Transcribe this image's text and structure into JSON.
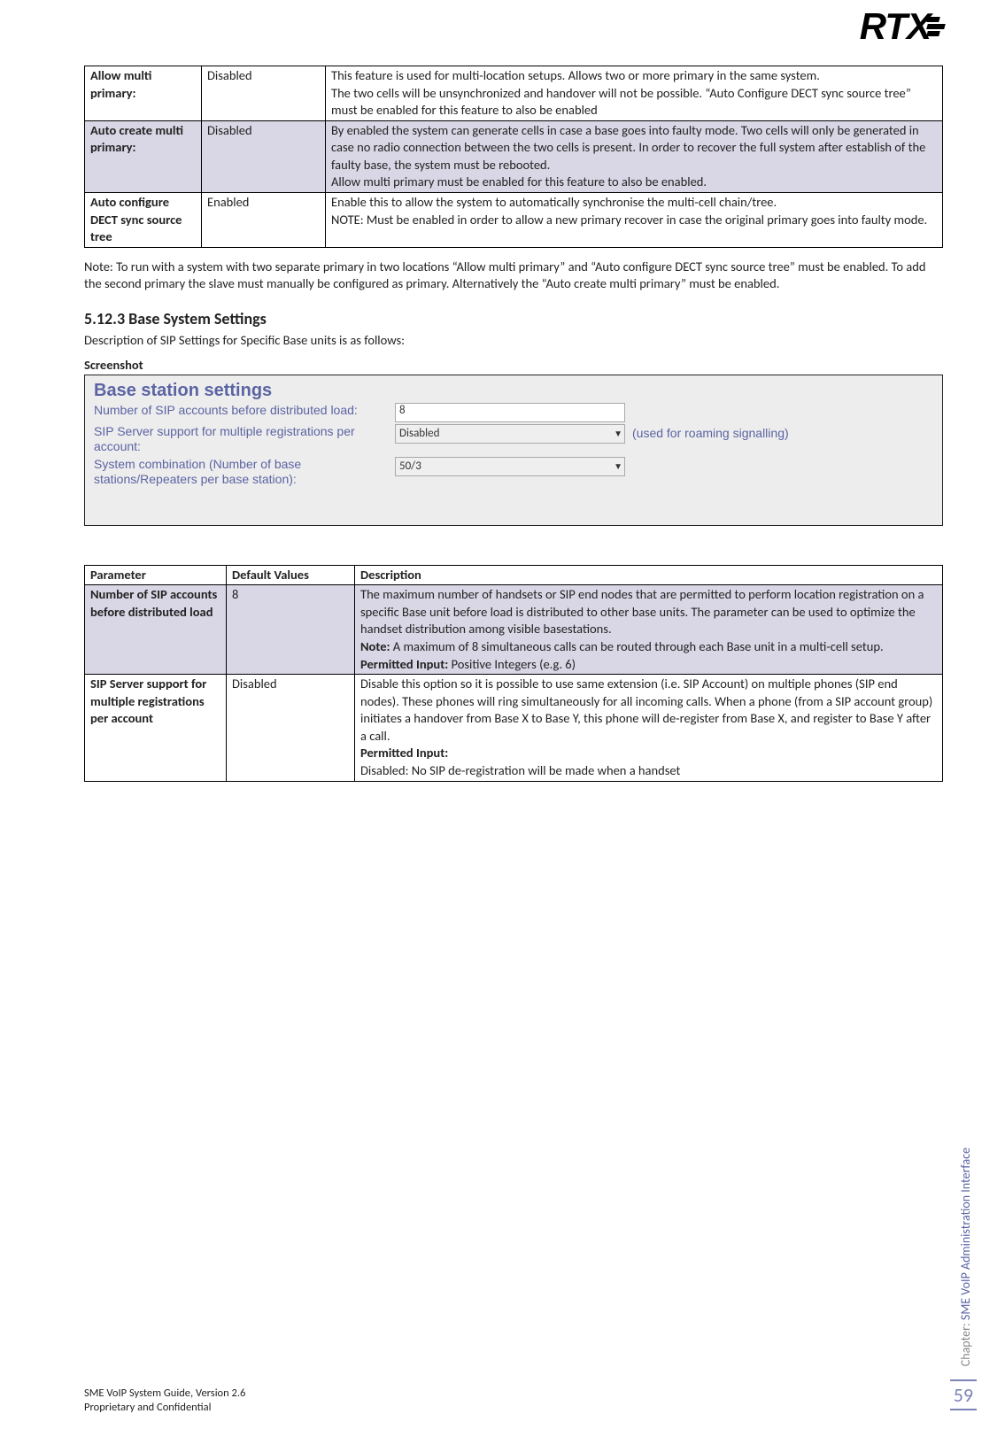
{
  "logo_text": "RTX",
  "table1": {
    "rows": [
      {
        "param": "Allow multi primary:",
        "default": "Disabled",
        "desc": "This feature is used for multi-location setups. Allows two or more primary in the same system.\nThe two cells will be unsynchronized and handover will not be possible. “Auto Configure DECT sync source tree” must be enabled for this feature to also be enabled",
        "shaded": false
      },
      {
        "param": "Auto create multi primary:",
        "default": "Disabled",
        "desc": "By enabled the system can generate cells in case a base goes into faulty mode. Two cells will only be generated in case no radio connection between the two cells is present. In order to recover the full system after establish of the faulty base, the system must be rebooted.\nAllow multi primary must be enabled for this feature to also be enabled.",
        "shaded": true
      },
      {
        "param": "Auto configure DECT sync source tree",
        "default": "Enabled",
        "desc": "Enable this to allow the system to automatically synchronise the multi-cell chain/tree.\nNOTE: Must be enabled in order to allow a new primary recover in case the original primary goes into faulty mode.",
        "shaded": false
      }
    ]
  },
  "note_para": "Note: To run with a system with two separate primary in two locations “Allow multi primary” and “Auto configure DECT sync source tree” must be enabled. To add the second primary the slave must manually be configured as primary. Alternatively the “Auto create multi primary” must be enabled.",
  "section_heading": "5.12.3 Base System Settings",
  "desc_para": "Description of SIP Settings for Specific Base units is as follows:",
  "screenshot_label": "Screenshot",
  "screenshot": {
    "title": "Base station settings",
    "rows": [
      {
        "label": "Number of SIP accounts before distributed load:",
        "type": "text",
        "value": "8",
        "hint": ""
      },
      {
        "label": "SIP Server support for multiple registrations per account:",
        "type": "select",
        "value": "Disabled",
        "hint": "(used for roaming signalling)"
      },
      {
        "label": "System combination (Number of base stations/Repeaters per base station):",
        "type": "select",
        "value": "50/3",
        "hint": ""
      }
    ]
  },
  "table2": {
    "headers": [
      "Parameter",
      "Default Values",
      "Description"
    ],
    "rows": [
      {
        "param": "Number of SIP accounts before distributed load",
        "default": "8",
        "desc_parts": [
          {
            "text": "The maximum number of handsets or SIP end nodes that are permitted to perform location registration on a specific Base unit before load is distributed to other base units. The parameter can be used to optimize the handset distribution among visible basestations."
          },
          {
            "boldprefix": "Note:",
            "text": " A maximum of 8 simultaneous calls can be routed through each Base unit in a multi-cell setup."
          },
          {
            "boldprefix": "Permitted Input:",
            "text": " Positive Integers (e.g. 6)"
          }
        ],
        "shaded": true
      },
      {
        "param": "SIP Server support for multiple registrations per account",
        "default": "Disabled",
        "desc_parts": [
          {
            "text": "Disable this option so it is possible to use same extension (i.e. SIP Account) on multiple phones (SIP end nodes). These phones will ring simultaneously for all incoming calls. When a phone (from a SIP account group) initiates a handover from Base X to Base Y, this phone will de-register from Base X, and register to Base Y after a call."
          },
          {
            "boldprefix": "Permitted Input:",
            "text": ""
          },
          {
            "text": "Disabled: No SIP de-registration will be made when a handset"
          }
        ],
        "shaded": false
      }
    ]
  },
  "side_chapter_prefix": "Chapter:",
  "side_chapter_text": " SME VoIP Administration Interface",
  "page_number": "59",
  "footer_line1": "SME VoIP System Guide, Version 2.6",
  "footer_line2": "Proprietary and Confidential"
}
